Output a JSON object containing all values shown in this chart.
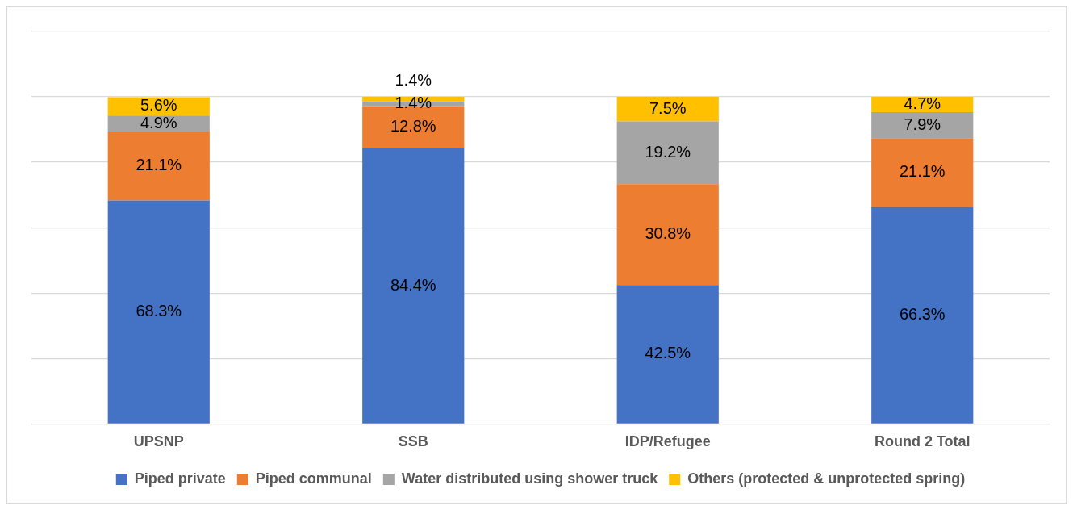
{
  "chart_data": {
    "type": "bar",
    "stacked": true,
    "categories": [
      "UPSNP",
      "SSB",
      "IDP/Refugee",
      "Round 2 Total"
    ],
    "series": [
      {
        "name": "Piped private",
        "color": "#4472c4",
        "values": [
          68.3,
          84.4,
          42.5,
          66.3
        ],
        "value_labels": [
          "68.3%",
          "84.4%",
          "42.5%",
          "66.3%"
        ]
      },
      {
        "name": "Piped communal",
        "color": "#ed7d31",
        "values": [
          21.1,
          12.8,
          30.8,
          21.1
        ],
        "value_labels": [
          "21.1%",
          "12.8%",
          "30.8%",
          "21.1%"
        ]
      },
      {
        "name": "Water distributed using shower truck",
        "color": "#a5a5a5",
        "values": [
          4.9,
          1.4,
          19.2,
          7.9
        ],
        "value_labels": [
          "4.9%",
          "1.4%",
          "19.2%",
          "7.9%"
        ]
      },
      {
        "name": "Others (protected & unprotected spring)",
        "color": "#ffc000",
        "values": [
          5.6,
          1.4,
          7.5,
          4.7
        ],
        "value_labels": [
          "5.6%",
          "1.4%",
          "7.5%",
          "4.7%"
        ]
      }
    ],
    "tick_labels": "x",
    "grid": "y",
    "legend": "bottom"
  }
}
